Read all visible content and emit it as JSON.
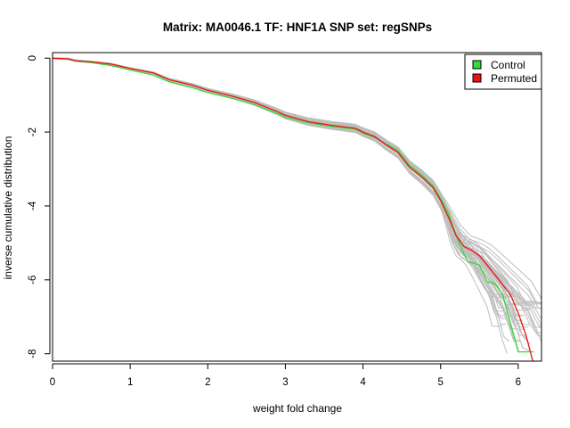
{
  "chart_data": {
    "type": "line",
    "title": "Matrix: MA0046.1 TF: HNF1A SNP set: regSNPs",
    "xlabel": "weight fold change",
    "ylabel": "inverse cumulative distribution",
    "xlim": [
      0,
      6.3
    ],
    "ylim": [
      -8.2,
      0.15
    ],
    "xticks": [
      "0",
      "1",
      "2",
      "3",
      "4",
      "5",
      "6"
    ],
    "yticks": [
      "0",
      "-2",
      "-4",
      "-6",
      "-8"
    ],
    "legend": {
      "position": "top-right",
      "entries": [
        "Control",
        "Permuted"
      ]
    },
    "colors": {
      "control": "#33dd33",
      "permuted": "#ee1111",
      "background_runs": "#bebebe"
    },
    "series": [
      {
        "name": "Control",
        "x": [
          0,
          0.2,
          0.3,
          0.5,
          0.75,
          1.0,
          1.3,
          1.5,
          1.8,
          2.0,
          2.3,
          2.6,
          2.9,
          3.0,
          3.3,
          3.6,
          3.9,
          4.0,
          4.15,
          4.3,
          4.45,
          4.6,
          4.75,
          4.9,
          5.0,
          5.1,
          5.2,
          5.3,
          5.35,
          5.5,
          5.6,
          5.7,
          5.8,
          5.9,
          6.0,
          6.2
        ],
        "y": [
          0,
          -0.02,
          -0.08,
          -0.12,
          -0.2,
          -0.32,
          -0.46,
          -0.64,
          -0.8,
          -0.93,
          -1.08,
          -1.26,
          -1.5,
          -1.6,
          -1.75,
          -1.85,
          -1.92,
          -2.03,
          -2.15,
          -2.32,
          -2.5,
          -2.9,
          -3.15,
          -3.45,
          -3.8,
          -4.2,
          -4.8,
          -5.3,
          -5.5,
          -5.6,
          -6.05,
          -6.1,
          -6.4,
          -7.2,
          -7.95,
          -7.95
        ]
      },
      {
        "name": "Permuted",
        "x": [
          0,
          0.2,
          0.3,
          0.5,
          0.75,
          1.0,
          1.3,
          1.5,
          1.8,
          2.0,
          2.3,
          2.6,
          2.9,
          3.0,
          3.3,
          3.6,
          3.9,
          4.0,
          4.15,
          4.3,
          4.45,
          4.6,
          4.75,
          4.9,
          5.0,
          5.1,
          5.2,
          5.3,
          5.4,
          5.5,
          5.6,
          5.75,
          5.9,
          6.0,
          6.1,
          6.2
        ],
        "y": [
          0,
          -0.02,
          -0.07,
          -0.1,
          -0.16,
          -0.28,
          -0.4,
          -0.58,
          -0.73,
          -0.87,
          -1.02,
          -1.2,
          -1.45,
          -1.55,
          -1.72,
          -1.82,
          -1.9,
          -2.0,
          -2.12,
          -2.35,
          -2.55,
          -2.95,
          -3.2,
          -3.5,
          -3.85,
          -4.3,
          -4.8,
          -5.1,
          -5.2,
          -5.35,
          -5.6,
          -6.0,
          -6.4,
          -6.9,
          -7.5,
          -8.3
        ]
      }
    ]
  }
}
